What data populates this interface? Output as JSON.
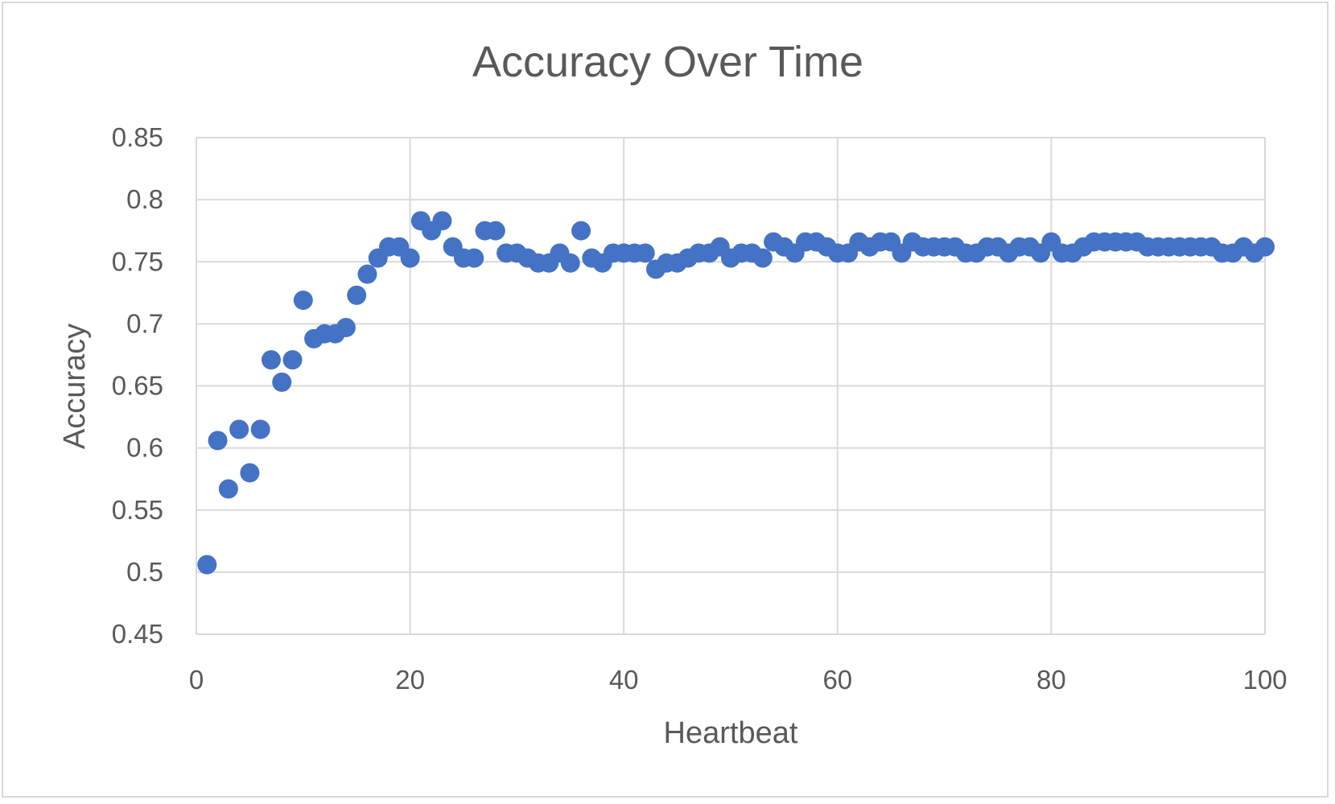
{
  "chart_data": {
    "type": "scatter",
    "title": "Accuracy Over Time",
    "xlabel": "Heartbeat",
    "ylabel": "Accuracy",
    "xlim": [
      0,
      100
    ],
    "ylim": [
      0.45,
      0.85
    ],
    "x_ticks": [
      "0",
      "20",
      "40",
      "60",
      "80",
      "100"
    ],
    "y_ticks": [
      "0.45",
      "0.5",
      "0.55",
      "0.6",
      "0.65",
      "0.7",
      "0.75",
      "0.8",
      "0.85"
    ],
    "grid": true,
    "legend": "none",
    "marker_color": "#4472C4",
    "series": [
      {
        "x": [
          1,
          2,
          3,
          4,
          5,
          6,
          7,
          8,
          9,
          10,
          11,
          12,
          13,
          14,
          15,
          16,
          17,
          18,
          19,
          20,
          21,
          22,
          23,
          24,
          25,
          26,
          27,
          28,
          29,
          30,
          31,
          32,
          33,
          34,
          35,
          36,
          37,
          38,
          39,
          40,
          41,
          42,
          43,
          44,
          45,
          46,
          47,
          48,
          49,
          50,
          51,
          52,
          53,
          54,
          55,
          56,
          57,
          58,
          59,
          60,
          61,
          62,
          63,
          64,
          65,
          66,
          67,
          68,
          69,
          70,
          71,
          72,
          73,
          74,
          75,
          76,
          77,
          78,
          79,
          80,
          81,
          82,
          83,
          84,
          85,
          86,
          87,
          88,
          89,
          90,
          91,
          92,
          93,
          94,
          95,
          96,
          97,
          98,
          99,
          100
        ],
        "y": [
          0.506,
          0.606,
          0.567,
          0.615,
          0.58,
          0.615,
          0.671,
          0.653,
          0.671,
          0.719,
          0.688,
          0.692,
          0.692,
          0.697,
          0.723,
          0.74,
          0.753,
          0.762,
          0.762,
          0.753,
          0.783,
          0.775,
          0.783,
          0.762,
          0.753,
          0.753,
          0.775,
          0.775,
          0.757,
          0.757,
          0.753,
          0.749,
          0.749,
          0.757,
          0.749,
          0.775,
          0.753,
          0.749,
          0.757,
          0.757,
          0.757,
          0.757,
          0.744,
          0.749,
          0.749,
          0.753,
          0.757,
          0.757,
          0.762,
          0.753,
          0.757,
          0.757,
          0.753,
          0.766,
          0.762,
          0.757,
          0.766,
          0.766,
          0.762,
          0.757,
          0.757,
          0.766,
          0.762,
          0.766,
          0.766,
          0.757,
          0.766,
          0.762,
          0.762,
          0.762,
          0.762,
          0.757,
          0.757,
          0.762,
          0.762,
          0.757,
          0.762,
          0.762,
          0.757,
          0.766,
          0.757,
          0.757,
          0.762,
          0.766,
          0.766,
          0.766,
          0.766,
          0.766,
          0.762,
          0.762,
          0.762,
          0.762,
          0.762,
          0.762,
          0.762,
          0.757,
          0.757,
          0.762,
          0.757,
          0.762
        ]
      }
    ]
  }
}
